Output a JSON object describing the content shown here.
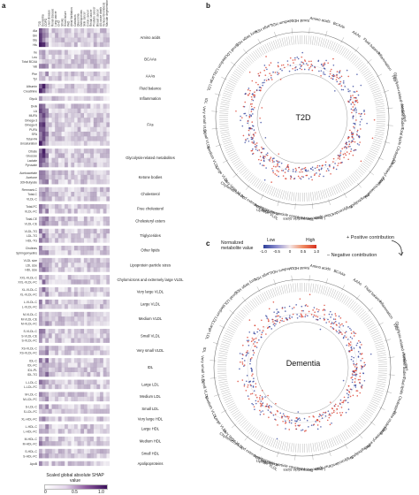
{
  "panels": {
    "a": "a",
    "b": "b",
    "c": "c"
  },
  "heatmap": {
    "rows": [
      {
        "group": "Amino acids",
        "labels": [
          "Ala",
          "Gln",
          "Gly",
          "His"
        ]
      },
      {
        "group": "BCAAs",
        "labels": [
          "Ile",
          "Leu",
          "Total BCAA",
          "Val"
        ]
      },
      {
        "group": "AAAs",
        "labels": [
          "Phe",
          "Tyr"
        ]
      },
      {
        "group": "Fluid balance",
        "labels": [
          "Albumin",
          "Creatinine"
        ]
      },
      {
        "group": "Inflammation",
        "labels": [
          "GlycA"
        ]
      },
      {
        "group": "FAs",
        "labels": [
          "DHA",
          "LA",
          "MUFA",
          "Omega-3",
          "Omega-6",
          "PUFA",
          "SFA",
          "Total-FA",
          "Unsaturation"
        ]
      },
      {
        "group": "Glycolysis-related metabolites",
        "labels": [
          "Citrate",
          "Glucose",
          "Lactate",
          "Pyruvate"
        ]
      },
      {
        "group": "Ketone bodies",
        "labels": [
          "Acetoacetate",
          "Acetone",
          "3OHbutyrate"
        ]
      },
      {
        "group": "Cholesterol",
        "labels": [
          "Remnant-C",
          "Total-C",
          "VLDL-C"
        ]
      },
      {
        "group": "Free cholesterol",
        "labels": [
          "Total-FC",
          "VLDL-FC"
        ]
      },
      {
        "group": "Cholesteryl esters",
        "labels": [
          "Total-CE",
          "VLDL-CE"
        ]
      },
      {
        "group": "Triglycerides",
        "labels": [
          "VLDL-TG",
          "LDL-TG",
          "HDL-TG"
        ]
      },
      {
        "group": "Other lipids",
        "labels": [
          "Cholines",
          "Sphingomyelins"
        ]
      },
      {
        "group": "Lipoprotein particle sizes",
        "labels": [
          "VLDL size",
          "LDL size",
          "HDL size"
        ]
      },
      {
        "group": "Chylomicrons and extremely large VLDL",
        "labels": [
          "XXL-VLDL-C",
          "XXL-VLDL-FC"
        ]
      },
      {
        "group": "Very large VLDL",
        "labels": [
          "XL-VLDL-C",
          "XL-VLDL-FC"
        ]
      },
      {
        "group": "Large VLDL",
        "labels": [
          "L-VLDL-C",
          "L-VLDL-FC"
        ]
      },
      {
        "group": "Medium VLDL",
        "labels": [
          "M-VLDL-C",
          "M-VLDL-CE",
          "M-VLDL-FC"
        ]
      },
      {
        "group": "Small VLDL",
        "labels": [
          "S-VLDL-C",
          "S-VLDL-CE",
          "S-VLDL-FC"
        ]
      },
      {
        "group": "Very small VLDL",
        "labels": [
          "XS-VLDL-C",
          "XS-VLDL-FC"
        ]
      },
      {
        "group": "IDL",
        "labels": [
          "IDL-C",
          "IDL-FC",
          "IDL-PL",
          "IDL-TG"
        ]
      },
      {
        "group": "Large LDL",
        "labels": [
          "L-LDL-C",
          "L-LDL-FC"
        ]
      },
      {
        "group": "Medium LDL",
        "labels": [
          "M-LDL-C",
          "M-LDL-FC"
        ]
      },
      {
        "group": "Small LDL",
        "labels": [
          "S-LDL-C",
          "S-LDL-FC"
        ]
      },
      {
        "group": "Very large HDL",
        "labels": [
          "XL-HDL-FC"
        ]
      },
      {
        "group": "Large HDL",
        "labels": [
          "L-HDL-C",
          "L-HDL-FC"
        ]
      },
      {
        "group": "Medium HDL",
        "labels": [
          "M-HDL-C",
          "M-HDL-FC"
        ]
      },
      {
        "group": "Small HDL",
        "labels": [
          "S-HDL-C",
          "S-HDL-FC"
        ]
      },
      {
        "group": "Apolipoproteins",
        "labels": [
          "ApoB"
        ]
      }
    ],
    "columns": [
      "T2D",
      "Dementia",
      "COPD",
      "Liver disease",
      "Renal disease",
      "Lung cancer",
      "CHD",
      "Stroke",
      "Heart failure",
      "PAD",
      "Atrial fibrillation",
      "Cataracts",
      "Glaucoma",
      "Osteoporosis",
      "Skin cancer",
      "Colon cancer",
      "Rectal cancer",
      "Prostate cancer",
      "Breast cancer",
      "All-cause death",
      "Venous thrombosis",
      "Macular degeneration"
    ],
    "legend": {
      "title": "Scaled global absolute SHAP value",
      "ticks": [
        "0",
        "0.5",
        "1.0"
      ]
    }
  },
  "circos_b": {
    "center": "T2D",
    "sectors": [
      "Amino acids",
      "BCAAs",
      "AAAs",
      "Fluid balance",
      "Inflammation",
      "FAs",
      "Glycolysis-related metabolites",
      "Ketone bodies",
      "Total lipids",
      "Cholesterol",
      "Cholesteryl esters",
      "Free cholesterol",
      "Phospholipids",
      "Triglycerides",
      "Other lipids",
      "Lipoprotein particle sizes",
      "Lipoprotein particle concentrations",
      "Apolipoproteins",
      "Chylomicrons and extremely large VLDL",
      "Very large VLDL",
      "Large VLDL",
      "Medium VLDL",
      "Small VLDL",
      "Very small VLDL",
      "IDL",
      "Large LDL",
      "Medium LDL",
      "Small LDL",
      "Very large HDL",
      "Large HDL",
      "Medium HDL",
      "Small HDL"
    ]
  },
  "circos_c": {
    "center": "Dementia",
    "sectors": [
      "Amino acids",
      "BCAAs",
      "AAAs",
      "Fluid balance",
      "Inflammation",
      "FAs",
      "Glycolysis-related metabolites",
      "Ketone bodies",
      "Total lipids",
      "Cholesterol",
      "Free cholesterol",
      "Cholesteryl esters",
      "Phospholipids",
      "Triglycerides",
      "Other lipids",
      "Lipoprotein particle sizes",
      "Lipoprotein particle concentrations",
      "Apolipoproteins",
      "Chylomicrons and extremely large VLDL",
      "Very large VLDL",
      "Large VLDL",
      "Medium VLDL",
      "Small VLDL",
      "Very small VLDL",
      "IDL",
      "Large LDL",
      "Medium LDL",
      "Small LDL",
      "Very large HDL",
      "Large HDL",
      "Medium HDL",
      "Small HDL"
    ]
  },
  "norm_legend": {
    "title": "Normalized metabolite value",
    "low": "Low",
    "high": "High",
    "ticks": [
      "-1.0",
      "-0.5",
      "0",
      "0.5",
      "1.0"
    ]
  },
  "contribution": {
    "positive": "+ Positive contribution",
    "negative": "– Negative contribution"
  },
  "colors": {
    "heat": "#3a0f5a",
    "pos": "#d7301f",
    "neg": "#2c3e99"
  }
}
